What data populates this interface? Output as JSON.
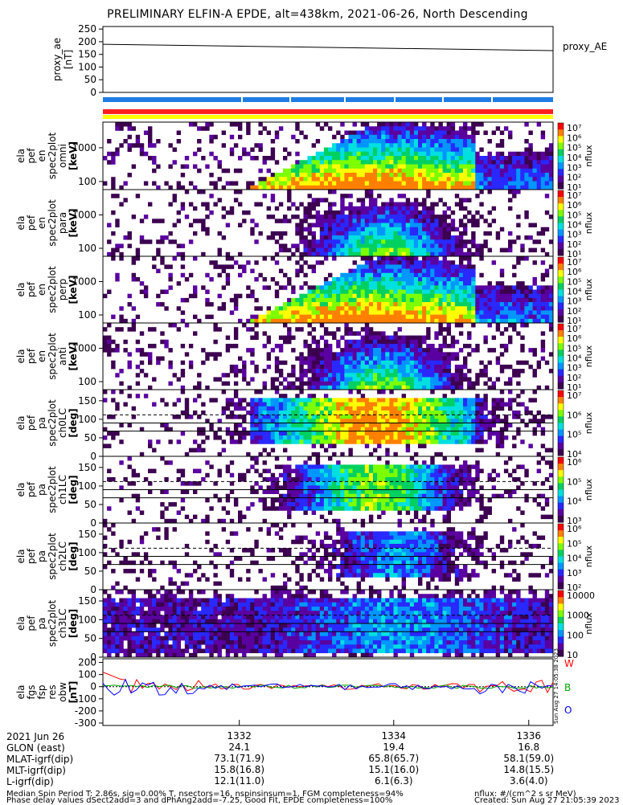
{
  "title": "PRELIMINARY ELFIN-A EPDE, alt=438km, 2021-06-26, North Descending",
  "chart_data": [
    {
      "type": "line",
      "panel": "proxy_ae",
      "ylabel": [
        "proxy_ae",
        "[nT]"
      ],
      "yticks": [
        "250",
        "200",
        "150",
        "100",
        "50",
        "0"
      ],
      "ylim": [
        0,
        260
      ],
      "legend": "proxy_AE",
      "series": [
        {
          "name": "proxy_AE",
          "x_frac": [
            0,
            1
          ],
          "values": [
            190,
            165
          ]
        }
      ]
    },
    {
      "type": "heatmap",
      "panel": "energy-omni",
      "ylabel": [
        "ela",
        "pef",
        "en",
        "spec2plot",
        "omni",
        "[keV]"
      ],
      "yticks": [
        "1000",
        "100"
      ],
      "scale": "log",
      "colorbar": {
        "label": "nflux",
        "ticks": [
          "10⁷",
          "10⁶",
          "10⁵",
          "10⁴",
          "10³",
          "10²",
          "10¹"
        ]
      }
    },
    {
      "type": "heatmap",
      "panel": "energy-para",
      "ylabel": [
        "ela",
        "pef",
        "en",
        "spec2plot",
        "para",
        "[keV]"
      ],
      "yticks": [
        "1000",
        "100"
      ],
      "scale": "log",
      "colorbar": {
        "label": "nflux",
        "ticks": [
          "10⁷",
          "10⁶",
          "10⁵",
          "10⁴",
          "10³",
          "10²",
          "10¹"
        ]
      }
    },
    {
      "type": "heatmap",
      "panel": "energy-perp",
      "ylabel": [
        "ela",
        "pef",
        "en",
        "spec2plot",
        "perp",
        "[keV]"
      ],
      "yticks": [
        "1000",
        "100"
      ],
      "scale": "log",
      "colorbar": {
        "label": "nflux",
        "ticks": [
          "10⁷",
          "10⁶",
          "10⁵",
          "10⁴",
          "10³",
          "10²",
          "10¹"
        ]
      }
    },
    {
      "type": "heatmap",
      "panel": "energy-anti",
      "ylabel": [
        "ela",
        "pef",
        "en",
        "spec2plot",
        "anti",
        "[keV]"
      ],
      "yticks": [
        "1000",
        "100"
      ],
      "scale": "log",
      "colorbar": {
        "label": "nflux",
        "ticks": [
          "10⁷",
          "10⁶",
          "10⁵",
          "10⁴",
          "10³",
          "10²",
          "10¹"
        ]
      }
    },
    {
      "type": "heatmap",
      "panel": "pa-ch0",
      "ylabel": [
        "ela",
        "pef",
        "pa",
        "spec2plot",
        "ch0LC",
        "[deg]"
      ],
      "yticks": [
        "150",
        "100",
        "50",
        "0"
      ],
      "ylim": [
        0,
        180
      ],
      "colorbar": {
        "label": "nflux",
        "ticks": [
          "10⁷",
          "10⁶",
          "10⁵",
          "10⁴"
        ]
      }
    },
    {
      "type": "heatmap",
      "panel": "pa-ch1",
      "ylabel": [
        "ela",
        "pef",
        "pa",
        "spec2plot",
        "ch1LC",
        "[deg]"
      ],
      "yticks": [
        "150",
        "100",
        "50",
        "0"
      ],
      "ylim": [
        0,
        180
      ],
      "colorbar": {
        "label": "nflux",
        "ticks": [
          "10⁶",
          "10⁵",
          "10⁴",
          "10³"
        ]
      }
    },
    {
      "type": "heatmap",
      "panel": "pa-ch2",
      "ylabel": [
        "ela",
        "pef",
        "pa",
        "spec2plot",
        "ch2LC",
        "[deg]"
      ],
      "yticks": [
        "150",
        "100",
        "50",
        "0"
      ],
      "ylim": [
        0,
        180
      ],
      "colorbar": {
        "label": "nflux",
        "ticks": [
          "10⁶",
          "10⁵",
          "10⁴",
          "10³",
          "10²"
        ]
      }
    },
    {
      "type": "heatmap",
      "panel": "pa-ch3",
      "ylabel": [
        "ela",
        "pef",
        "pa",
        "spec2plot",
        "ch3LC",
        "[deg]"
      ],
      "yticks": [
        "150",
        "100",
        "50",
        "0"
      ],
      "ylim": [
        0,
        180
      ],
      "colorbar": {
        "label": "nflux",
        "ticks": [
          "10000",
          "1000",
          "100",
          "10"
        ]
      }
    },
    {
      "type": "line",
      "panel": "fgs",
      "ylabel": [
        "ela",
        "fgs",
        "fsp",
        "res",
        "obw",
        "[nT]"
      ],
      "yticks": [
        "200",
        "100",
        "0",
        "-100",
        "-200",
        "-300"
      ],
      "ylim": [
        -320,
        230
      ],
      "legend": [
        "W",
        "B",
        "O"
      ],
      "colors": {
        "W": "#ff0000",
        "B": "#00aa00",
        "O": "#0000ff"
      },
      "side_note": "Sun Aug 27 14:05:38 2023"
    }
  ],
  "time_axis": {
    "rows": [
      {
        "label": "2021 Jun 26",
        "values": [
          "1332",
          "1334",
          "1336"
        ]
      },
      {
        "label": "GLON (east)",
        "values": [
          "24.1",
          "19.4",
          "16.8"
        ]
      },
      {
        "label": "MLAT-igrf(dip)",
        "values": [
          "73.1(71.9)",
          "65.8(65.7)",
          "58.1(59.0)"
        ]
      },
      {
        "label": "MLT-igrf(dip)",
        "values": [
          "15.8(16.8)",
          "15.1(16.0)",
          "14.8(15.5)"
        ]
      },
      {
        "label": "L-igrf(dip)",
        "values": [
          "12.1(11.0)",
          "6.1(6.3)",
          "3.6(4.0)"
        ]
      }
    ],
    "tick_x_frac": [
      0.303,
      0.646,
      0.946
    ]
  },
  "footer": {
    "left_line1": "Median Spin Period T: 2.86s, sig=0.00% T, nsectors=16, nspinsinsum=1, FGM completeness=94%",
    "left_line2": "Phase delay values dSect2add=3 and dPhAng2add=-7.25, Good Fit, EPDE completeness=100%",
    "right_line1": "nflux: #/(cm^2 s sr MeV)",
    "right_line2": "Created: Sun Aug 27 21:05:39 2023"
  }
}
